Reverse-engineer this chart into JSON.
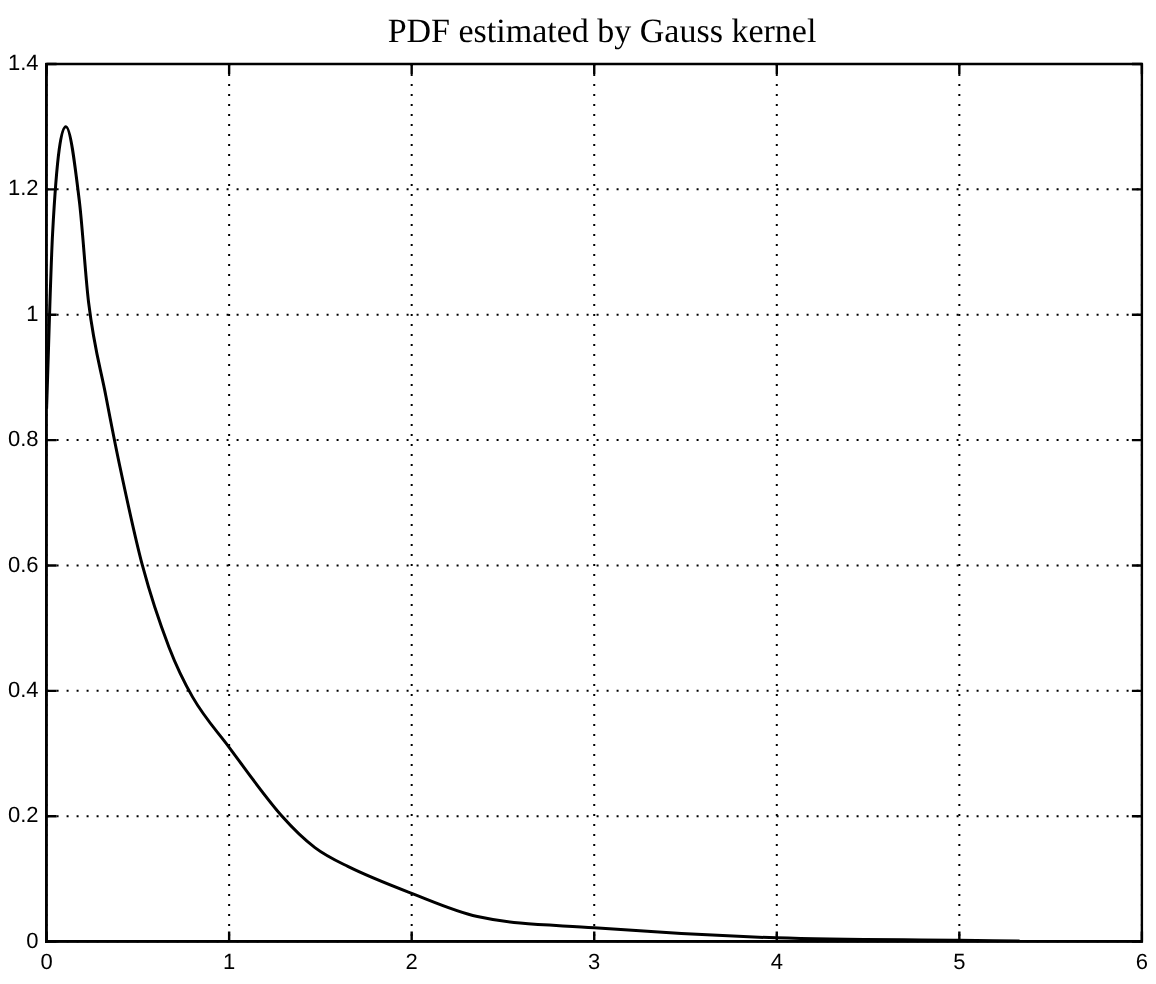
{
  "chart_data": {
    "type": "line",
    "title": "PDF estimated by Gauss kernel",
    "x": [
      0,
      0.033,
      0.106,
      0.18,
      0.23,
      0.325,
      0.4,
      0.525,
      0.67,
      0.8,
      1.0,
      1.29,
      1.47,
      1.65,
      2.0,
      2.36,
      3.0,
      4.0,
      5.0,
      5.33
    ],
    "series": [
      {
        "color": "#000000",
        "values": [
          0.85,
          1.13,
          1.3,
          1.18,
          1.02,
          0.87,
          0.76,
          0.6,
          0.47,
          0.39,
          0.31,
          0.2,
          0.15,
          0.12,
          0.077,
          0.04,
          0.022,
          0.006,
          0.002,
          0.001
        ]
      }
    ],
    "xlim": [
      0,
      6
    ],
    "xticks": [
      0,
      1,
      2,
      3,
      4,
      5,
      6
    ],
    "ylim": [
      0,
      1.4
    ],
    "yticks": [
      0,
      0.2,
      0.4,
      0.6,
      0.8,
      1,
      1.2,
      1.4
    ],
    "grid": true,
    "legend": false,
    "marker": "none",
    "line_style": "solid"
  }
}
